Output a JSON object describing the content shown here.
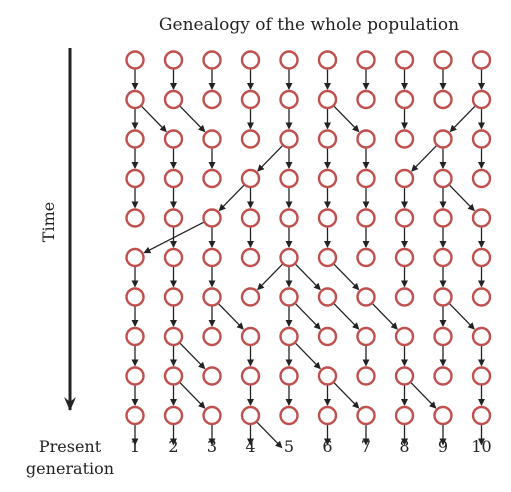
{
  "title": "Genealogy of the whole population",
  "time_label": "Time",
  "present_label": [
    "Present",
    "generation"
  ],
  "individuals": [
    "1",
    "2",
    "3",
    "4",
    "5",
    "6",
    "7",
    "8",
    "9",
    "10"
  ],
  "generations": 10,
  "colors": {
    "circle_stroke": "#c0504d",
    "arrow": "#222222",
    "text": "#222222"
  },
  "parent_links": [
    [
      0,
      1,
      2,
      3,
      4,
      5,
      6,
      7,
      8,
      9
    ],
    [
      0,
      0,
      1,
      3,
      4,
      5,
      5,
      7,
      9,
      9
    ],
    [
      0,
      1,
      2,
      4,
      4,
      5,
      6,
      8,
      8,
      9
    ],
    [
      0,
      1,
      3,
      3,
      4,
      5,
      6,
      7,
      8,
      8
    ],
    [
      2,
      1,
      2,
      3,
      4,
      5,
      6,
      7,
      8,
      9
    ],
    [
      0,
      1,
      2,
      4,
      4,
      4,
      5,
      7,
      8,
      9
    ],
    [
      0,
      1,
      2,
      2,
      4,
      4,
      5,
      6,
      8,
      8
    ],
    [
      0,
      1,
      1,
      3,
      4,
      4,
      6,
      7,
      8,
      9
    ],
    [
      0,
      1,
      1,
      3,
      4,
      5,
      5,
      7,
      7,
      9
    ],
    [
      0,
      1,
      2,
      3,
      3,
      5,
      6,
      7,
      8,
      9
    ]
  ]
}
